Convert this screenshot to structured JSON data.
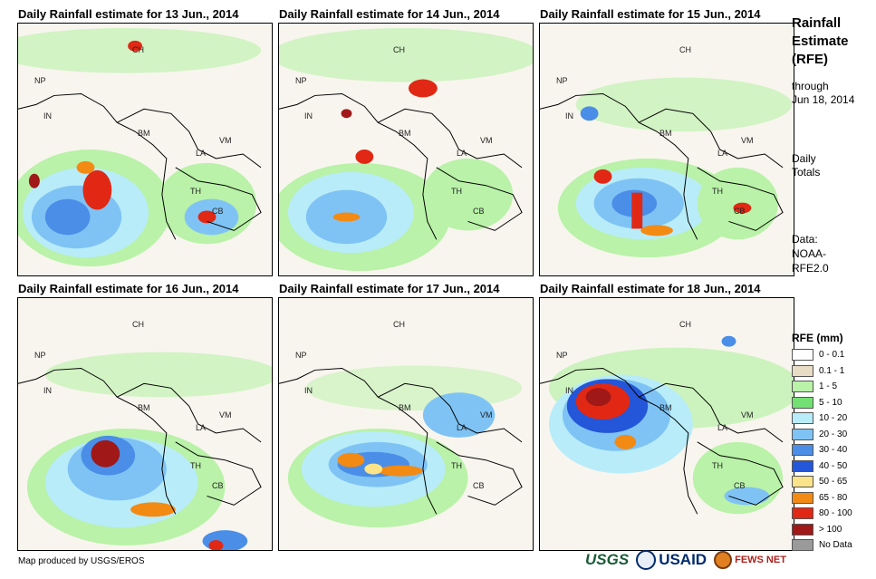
{
  "panels": [
    {
      "title": "Daily Rainfall estimate for 13 Jun., 2014"
    },
    {
      "title": "Daily Rainfall estimate for 14 Jun., 2014"
    },
    {
      "title": "Daily Rainfall estimate for 15 Jun., 2014"
    },
    {
      "title": "Daily Rainfall estimate for 16 Jun., 2014"
    },
    {
      "title": "Daily Rainfall estimate for 17 Jun., 2014"
    },
    {
      "title": "Daily Rainfall estimate for 18 Jun., 2014"
    }
  ],
  "country_labels": [
    "CH",
    "NP",
    "IN",
    "BM",
    "LA",
    "VM",
    "TH",
    "CB"
  ],
  "sidebar": {
    "title_line1": "Rainfall",
    "title_line2": "Estimate",
    "title_line3": "(RFE)",
    "through": "through",
    "date": "Jun 18, 2014",
    "daily": "Daily",
    "totals": "Totals",
    "data_label": "Data:",
    "data_src1": "NOAA-",
    "data_src2": "RFE2.0"
  },
  "legend": {
    "title": "RFE (mm)",
    "items": [
      {
        "label": "0 - 0.1",
        "color": "#ffffff"
      },
      {
        "label": "0.1 - 1",
        "color": "#e8dcc4"
      },
      {
        "label": "1 - 5",
        "color": "#b9f2a8"
      },
      {
        "label": "5 - 10",
        "color": "#73e073"
      },
      {
        "label": "10 - 20",
        "color": "#b8ecf8"
      },
      {
        "label": "20 - 30",
        "color": "#7fc3f5"
      },
      {
        "label": "30 - 40",
        "color": "#4a8ee8"
      },
      {
        "label": "40 - 50",
        "color": "#2356d8"
      },
      {
        "label": "50 - 65",
        "color": "#fae389"
      },
      {
        "label": "65 - 80",
        "color": "#f28a14"
      },
      {
        "label": "80 - 100",
        "color": "#e02814"
      },
      {
        "label": "> 100",
        "color": "#a01818"
      },
      {
        "label": "No Data",
        "color": "#9a9a9a"
      }
    ]
  },
  "footer": "Map produced by USGS/EROS",
  "logos": {
    "usgs": "USGS",
    "usaid": "USAID",
    "fews": "FEWS NET"
  }
}
